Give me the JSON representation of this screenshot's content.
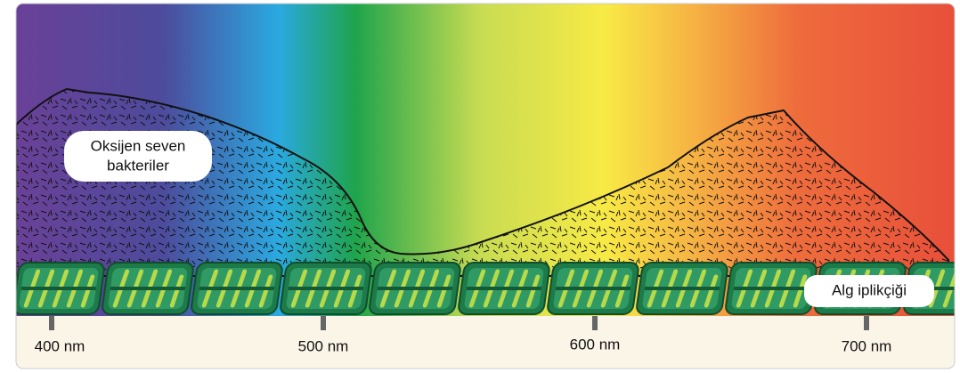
{
  "bacteria_label": {
    "lines": [
      "Oksijen seven",
      "bakteriler"
    ]
  },
  "alga_label": "Alg iplikçiği",
  "scale": {
    "ticks": [
      "400 nm",
      "500 nm",
      "600 nm",
      "700 nm"
    ]
  }
}
